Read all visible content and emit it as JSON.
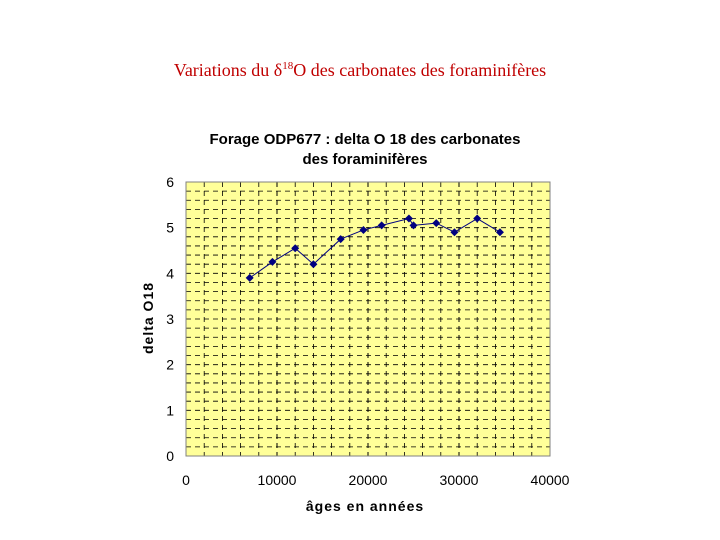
{
  "slide": {
    "title_prefix": "Variations du ",
    "title_symbol": "δ",
    "title_sup": "18",
    "title_suffix": "O des carbonates des foraminifères"
  },
  "colors": {
    "title": "#c00000",
    "plot_bg": "#ffff99",
    "series": "#000080",
    "grid": "#000000"
  },
  "chart_data": {
    "type": "line",
    "title_lines": [
      "Forage ODP677 : delta O 18 des carbonates",
      "des foraminifères"
    ],
    "xlabel": "âges en années",
    "ylabel": "delta O18",
    "xlim": [
      0,
      40000
    ],
    "ylim": [
      0,
      6
    ],
    "xticks": [
      0,
      10000,
      20000,
      30000,
      40000
    ],
    "yticks": [
      0,
      1,
      2,
      3,
      4,
      5,
      6
    ],
    "grid": true,
    "legend": "none",
    "series": [
      {
        "x": [
          7000,
          9500,
          12000,
          14000,
          17000,
          19500,
          21500,
          24500,
          25000,
          27500,
          29500,
          32000,
          34500
        ],
        "y": [
          3.9,
          4.25,
          4.55,
          4.2,
          4.75,
          4.95,
          5.05,
          5.2,
          5.05,
          5.1,
          4.9,
          5.2,
          4.9
        ]
      }
    ]
  }
}
